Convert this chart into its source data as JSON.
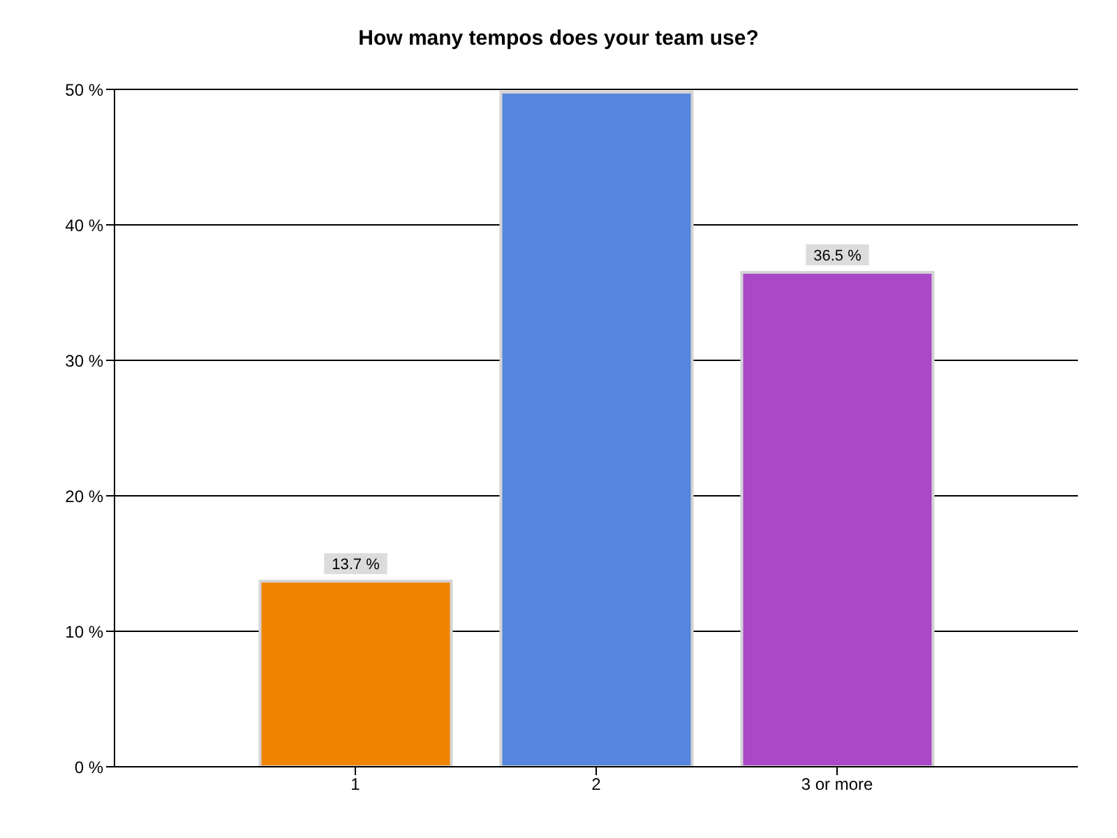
{
  "chart_data": {
    "type": "bar",
    "title": "How many tempos does your team use?",
    "categories": [
      "1",
      "2",
      "3 or more"
    ],
    "values": [
      13.7,
      49.8,
      36.5
    ],
    "colors": [
      "#f08400",
      "#5585dc",
      "#aa48c8"
    ],
    "value_labels": [
      "13.7 %",
      null,
      "36.5 %"
    ],
    "ylim": [
      0,
      50
    ],
    "yticks": [
      {
        "value": 0,
        "label": "0 %"
      },
      {
        "value": 10,
        "label": "10 %"
      },
      {
        "value": 20,
        "label": "20 %"
      },
      {
        "value": 30,
        "label": "30 %"
      },
      {
        "value": 40,
        "label": "40 %"
      },
      {
        "value": 50,
        "label": "50 %"
      }
    ],
    "grid": "y"
  }
}
